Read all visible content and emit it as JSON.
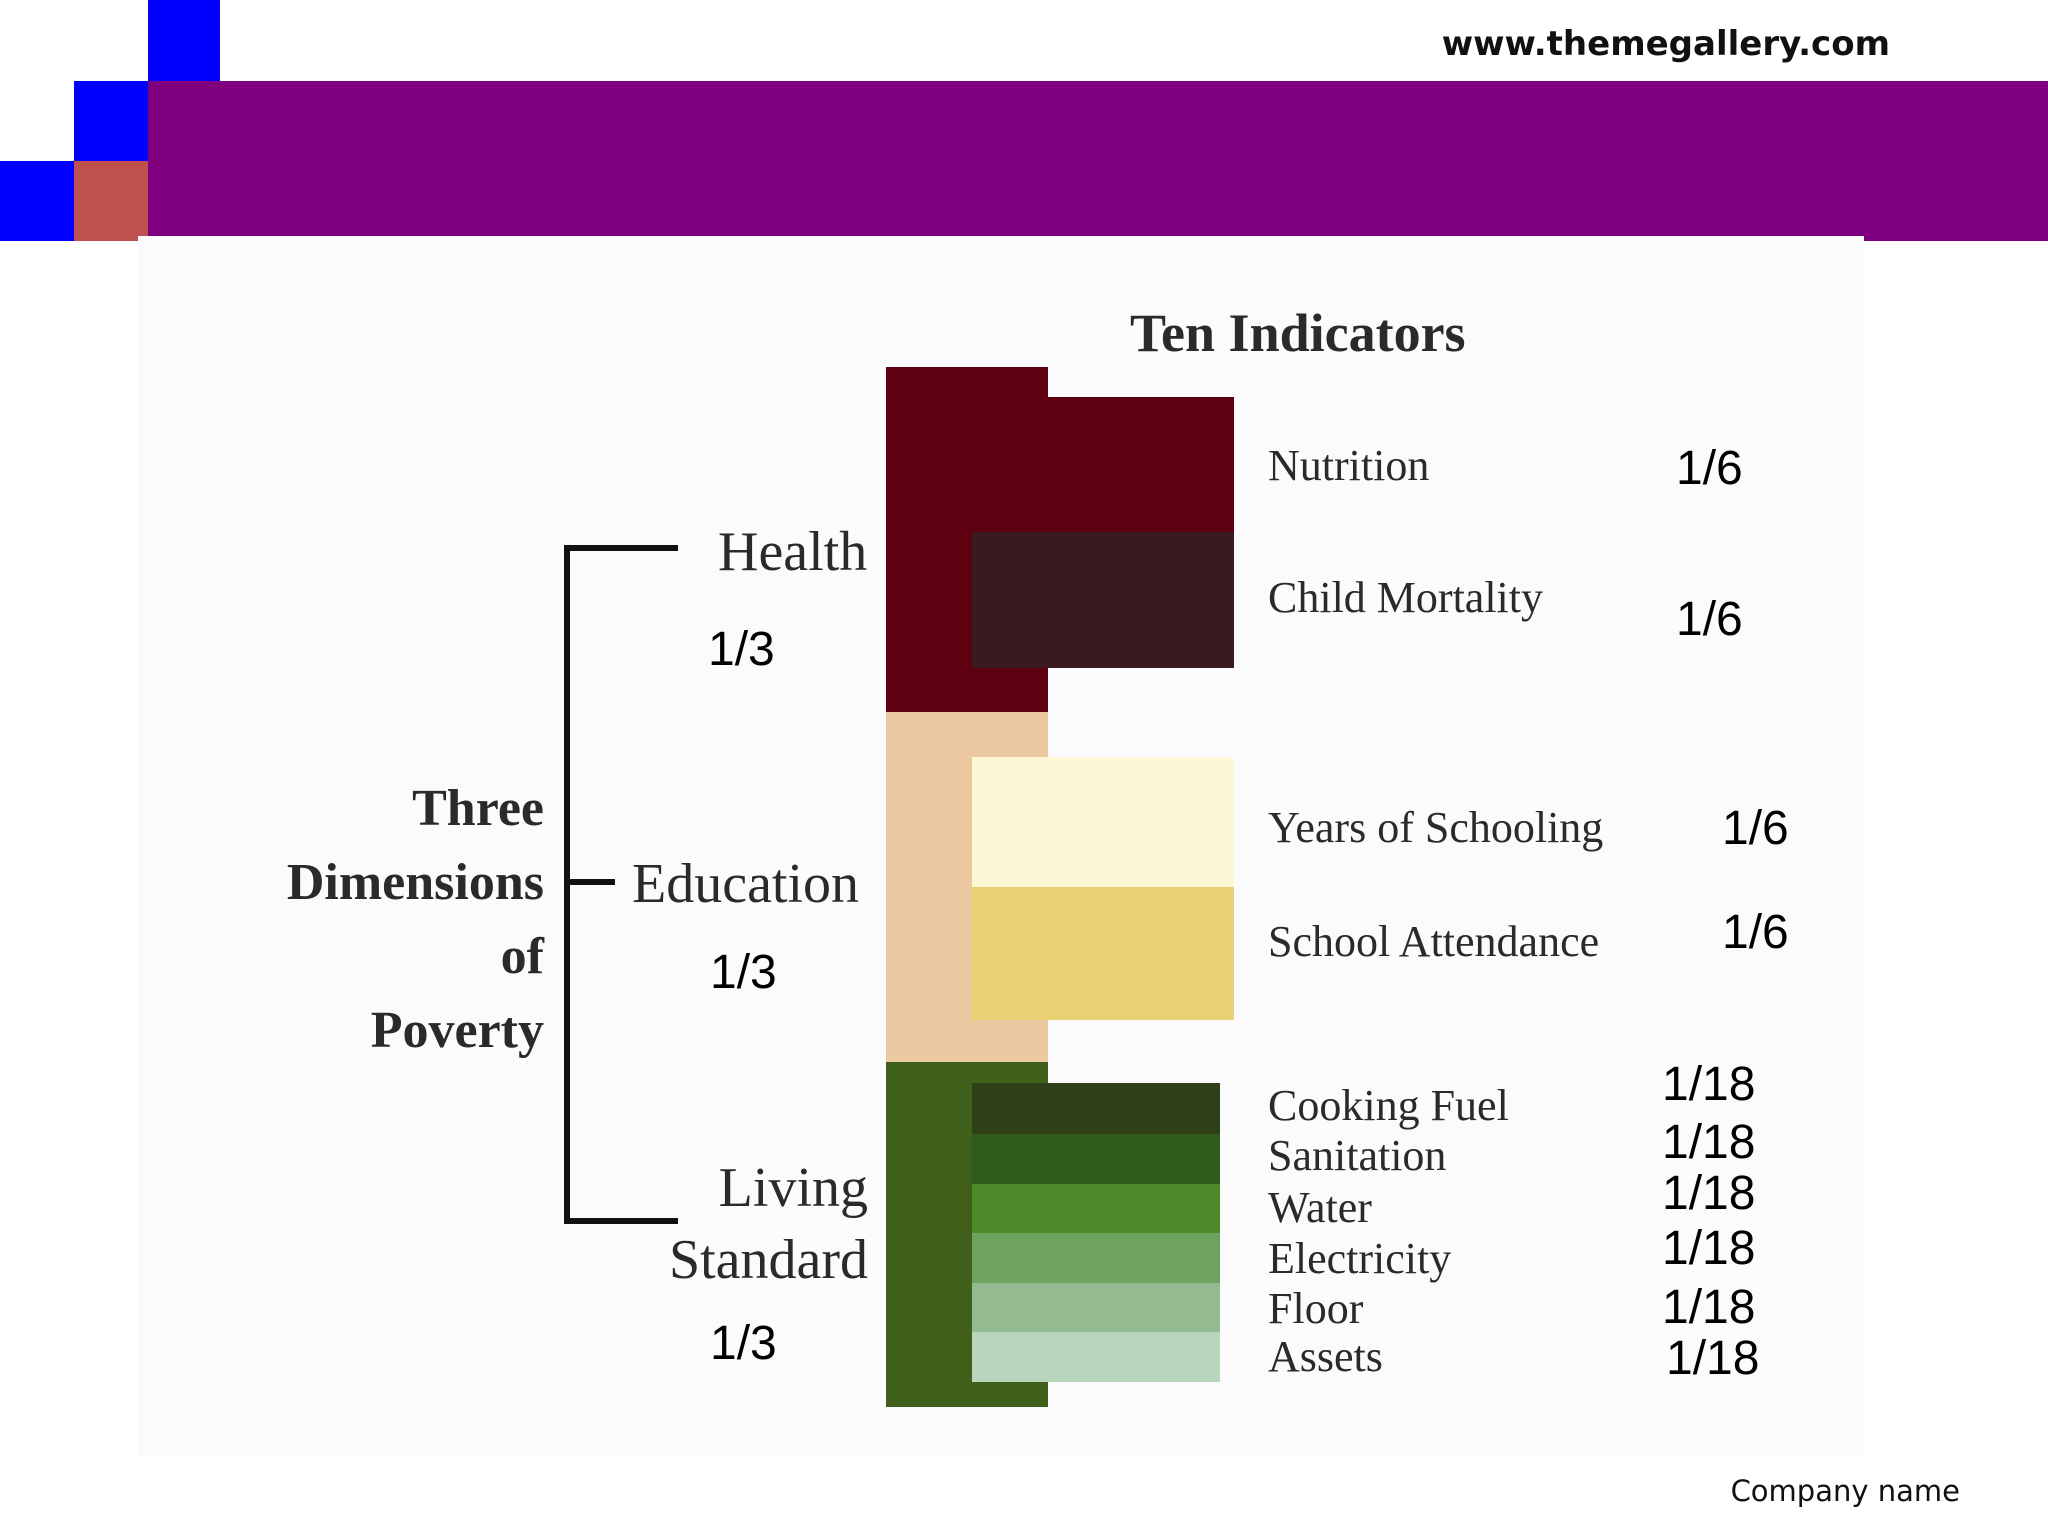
{
  "header": {
    "url": "www.themegallery.com"
  },
  "colors": {
    "band": "#7f007f",
    "accent_blue": "#0000ff",
    "accent_red": "#c0504d",
    "health_dim": "#5e0010",
    "health_ind1": "#5e0010",
    "health_ind2": "#3a1a1e",
    "education_dim": "#ecc9a1",
    "education_ind1": "#fdf7d6",
    "education_ind2": "#e9d174",
    "living_dim": "#3f5f1b",
    "living_ind": [
      "#2f3f18",
      "#2f5b1c",
      "#4c8a2a",
      "#6da35e",
      "#93ba90",
      "#b7d6bb"
    ]
  },
  "diagram": {
    "title": "Ten Indicators",
    "root_label": [
      "Three",
      "Dimensions",
      "of",
      "Poverty"
    ],
    "dimensions": [
      {
        "name": [
          "Health"
        ],
        "weight": "1/3",
        "indicators": [
          {
            "name": "Nutrition",
            "weight": "1/6"
          },
          {
            "name": "Child Mortality",
            "weight": "1/6"
          }
        ]
      },
      {
        "name": [
          "Education"
        ],
        "weight": "1/3",
        "indicators": [
          {
            "name": "Years of Schooling",
            "weight": "1/6"
          },
          {
            "name": "School Attendance",
            "weight": "1/6"
          }
        ]
      },
      {
        "name": [
          "Living",
          "Standard"
        ],
        "weight": "1/3",
        "indicators": [
          {
            "name": "Cooking Fuel",
            "weight": "1/18"
          },
          {
            "name": "Sanitation",
            "weight": "1/18"
          },
          {
            "name": "Water",
            "weight": "1/18"
          },
          {
            "name": "Electricity",
            "weight": "1/18"
          },
          {
            "name": "Floor",
            "weight": "1/18"
          },
          {
            "name": "Assets",
            "weight": "1/18"
          }
        ]
      }
    ]
  },
  "footer": {
    "company": "Company name"
  }
}
